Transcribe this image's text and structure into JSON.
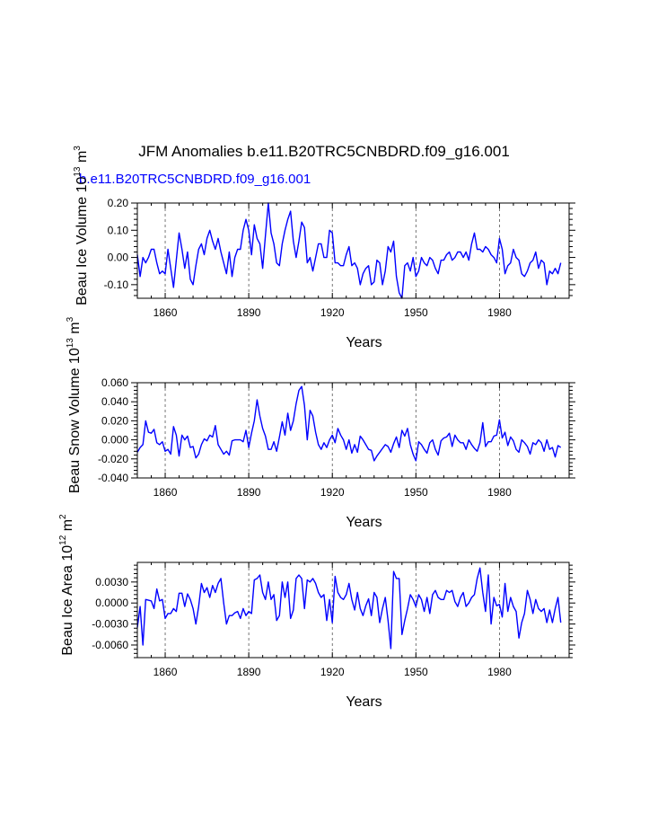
{
  "title": "JFM Anomalies b.e11.B20TRC5CNBDRD.f09_g16.001",
  "subtitle": "b.e11.B20TRC5CNBDRD.f09_g16.001",
  "colors": {
    "series": "#0000ff",
    "axis": "#000000",
    "grid": "#555555",
    "subtitle": "#0000ff"
  },
  "chart_data": [
    {
      "type": "line",
      "ylabel_main": "Beau Ice Volume 10",
      "ylabel_exp": "13",
      "ylabel_unit": "m",
      "ylabel_unit_exp": "3",
      "xlabel": "Years",
      "xlim": [
        1850,
        2005
      ],
      "ylim": [
        -0.15,
        0.2
      ],
      "xticks": [
        1860,
        1890,
        1920,
        1950,
        1980
      ],
      "xtick_labels": [
        "1860",
        "1890",
        "1920",
        "1950",
        "1980"
      ],
      "yticks": [
        -0.1,
        0.0,
        0.1,
        0.2
      ],
      "ytick_labels": [
        "-0.10",
        "0.00",
        "0.10",
        "0.20"
      ],
      "x_start": 1850,
      "values": [
        0.01,
        -0.07,
        0.0,
        -0.02,
        0.0,
        0.03,
        0.03,
        -0.02,
        -0.06,
        -0.05,
        -0.06,
        0.03,
        -0.04,
        -0.11,
        -0.01,
        0.09,
        0.03,
        -0.04,
        0.02,
        -0.08,
        -0.1,
        -0.03,
        0.03,
        0.05,
        0.01,
        0.07,
        0.1,
        0.06,
        0.03,
        0.07,
        0.02,
        -0.02,
        -0.06,
        0.02,
        -0.07,
        0.0,
        0.03,
        0.03,
        0.1,
        0.14,
        0.1,
        0.01,
        0.12,
        0.07,
        0.05,
        -0.04,
        0.08,
        0.2,
        0.09,
        0.05,
        -0.02,
        -0.03,
        0.05,
        0.1,
        0.14,
        0.17,
        0.06,
        0.0,
        0.06,
        0.13,
        0.11,
        -0.02,
        0.0,
        -0.05,
        0.0,
        0.05,
        0.05,
        0.0,
        0.0,
        0.1,
        0.09,
        -0.02,
        -0.02,
        -0.03,
        -0.03,
        0.01,
        0.04,
        -0.03,
        -0.02,
        -0.04,
        -0.1,
        -0.06,
        -0.04,
        -0.03,
        -0.1,
        -0.09,
        -0.01,
        -0.02,
        -0.1,
        -0.05,
        0.04,
        0.02,
        0.06,
        -0.07,
        -0.13,
        -0.15,
        -0.03,
        -0.02,
        -0.05,
        0.0,
        -0.07,
        -0.05,
        0.0,
        -0.02,
        -0.03,
        0.0,
        -0.01,
        -0.04,
        -0.06,
        -0.01,
        -0.01,
        0.01,
        0.02,
        -0.01,
        0.0,
        0.02,
        0.02,
        0.0,
        0.02,
        -0.01,
        0.05,
        0.09,
        0.03,
        0.03,
        0.02,
        0.04,
        0.03,
        0.01,
        0.0,
        -0.02,
        0.07,
        0.03,
        -0.06,
        -0.03,
        -0.02,
        0.03,
        0.0,
        -0.01,
        -0.06,
        -0.07,
        -0.05,
        -0.02,
        -0.01,
        0.02,
        -0.04,
        -0.01,
        -0.02,
        -0.1,
        -0.05,
        -0.06,
        -0.04,
        -0.06,
        -0.02
      ]
    },
    {
      "type": "line",
      "ylabel_main": "Beau Snow Volume 10",
      "ylabel_exp": "13",
      "ylabel_unit": "m",
      "ylabel_unit_exp": "3",
      "xlabel": "Years",
      "xlim": [
        1850,
        2005
      ],
      "ylim": [
        -0.04,
        0.06
      ],
      "xticks": [
        1860,
        1890,
        1920,
        1950,
        1980
      ],
      "xtick_labels": [
        "1860",
        "1890",
        "1920",
        "1950",
        "1980"
      ],
      "yticks": [
        -0.04,
        -0.02,
        0.0,
        0.02,
        0.04,
        0.06
      ],
      "ytick_labels": [
        "-0.040",
        "-0.020",
        "0.000",
        "0.020",
        "0.040",
        "0.060"
      ],
      "x_start": 1850,
      "values": [
        -0.013,
        -0.008,
        -0.005,
        0.02,
        0.008,
        0.007,
        0.011,
        -0.003,
        -0.005,
        -0.002,
        -0.012,
        -0.01,
        -0.015,
        0.014,
        0.005,
        -0.017,
        0.005,
        0.0,
        0.004,
        -0.008,
        -0.007,
        -0.019,
        -0.015,
        -0.005,
        0.001,
        -0.001,
        0.005,
        0.003,
        0.015,
        -0.005,
        -0.01,
        -0.015,
        -0.012,
        -0.016,
        -0.001,
        0.0,
        0.0,
        0.0,
        -0.002,
        0.01,
        -0.008,
        0.007,
        0.02,
        0.042,
        0.025,
        0.012,
        0.004,
        -0.01,
        -0.01,
        -0.002,
        -0.012,
        0.003,
        0.019,
        0.005,
        0.028,
        0.01,
        0.02,
        0.038,
        0.052,
        0.056,
        0.036,
        0.0,
        0.031,
        0.025,
        0.008,
        -0.005,
        -0.01,
        -0.003,
        -0.008,
        0.0,
        0.005,
        -0.003,
        0.012,
        0.005,
        0.0,
        -0.01,
        0.0,
        -0.014,
        -0.005,
        -0.013,
        0.004,
        0.0,
        -0.005,
        -0.01,
        -0.011,
        -0.022,
        -0.017,
        -0.013,
        -0.009,
        -0.005,
        -0.007,
        -0.013,
        -0.004,
        0.003,
        -0.008,
        0.01,
        0.004,
        0.012,
        -0.005,
        -0.015,
        -0.022,
        -0.002,
        -0.005,
        -0.01,
        -0.014,
        -0.003,
        0.0,
        -0.01,
        -0.016,
        -0.001,
        0.002,
        0.003,
        0.007,
        -0.007,
        0.005,
        0.0,
        -0.003,
        -0.003,
        -0.01,
        0.0,
        -0.005,
        -0.009,
        -0.012,
        -0.003,
        0.018,
        -0.007,
        -0.002,
        -0.002,
        0.004,
        0.005,
        0.021,
        0.002,
        0.008,
        -0.006,
        0.003,
        -0.001,
        -0.01,
        -0.013,
        0.0,
        -0.003,
        -0.007,
        -0.015,
        -0.003,
        -0.005,
        0.0,
        -0.003,
        -0.012,
        0.0,
        -0.01,
        -0.008,
        -0.018,
        -0.006,
        -0.008
      ]
    },
    {
      "type": "line",
      "ylabel_main": "Beau Ice Area 10",
      "ylabel_exp": "12",
      "ylabel_unit": "m",
      "ylabel_unit_exp": "2",
      "xlabel": "Years",
      "xlim": [
        1850,
        2005
      ],
      "ylim": [
        -0.0078,
        0.0058
      ],
      "xticks": [
        1860,
        1890,
        1920,
        1950,
        1980
      ],
      "xtick_labels": [
        "1860",
        "1890",
        "1920",
        "1950",
        "1980"
      ],
      "yticks": [
        -0.006,
        -0.003,
        0.0,
        0.003
      ],
      "ytick_labels": [
        "-0.0060",
        "-0.0030",
        "0.0000",
        "0.0030"
      ],
      "x_start": 1850,
      "values": [
        -0.0035,
        -0.0005,
        -0.006,
        0.0005,
        0.0004,
        0.0003,
        -0.0008,
        0.002,
        0.0003,
        0.0005,
        -0.0022,
        -0.0015,
        -0.0015,
        -0.0008,
        -0.0012,
        0.0014,
        0.0014,
        -0.0005,
        0.0013,
        0.0005,
        -0.0008,
        -0.003,
        -0.0005,
        0.0028,
        0.0015,
        0.0022,
        0.0008,
        0.0025,
        0.0015,
        0.0028,
        0.0035,
        0.0,
        -0.003,
        -0.0018,
        -0.0018,
        -0.0014,
        -0.0012,
        -0.0022,
        -0.0008,
        -0.0018,
        -0.0012,
        -0.0015,
        0.0033,
        0.0035,
        0.004,
        0.0015,
        0.0005,
        0.003,
        0.0005,
        0.0012,
        -0.0025,
        -0.0018,
        0.003,
        0.0008,
        0.003,
        -0.0022,
        -0.001,
        0.0035,
        0.004,
        0.0035,
        -0.0008,
        0.0033,
        0.003,
        0.0035,
        0.0028,
        0.0015,
        0.0008,
        0.0012,
        -0.0025,
        0.0005,
        -0.0028,
        0.0038,
        0.0015,
        0.0008,
        0.0005,
        0.0012,
        0.0028,
        0.0005,
        -0.001,
        0.0015,
        -0.0008,
        -0.0018,
        -0.0004,
        0.0006,
        -0.0018,
        0.0015,
        0.0008,
        -0.0028,
        -0.0008,
        0.0008,
        -0.0025,
        -0.0065,
        0.0045,
        0.0035,
        0.0035,
        -0.0045,
        -0.0025,
        -0.0008,
        0.0012,
        0.0005,
        -0.0005,
        0.0012,
        0.0005,
        -0.0012,
        0.0008,
        -0.0015,
        0.0012,
        0.0018,
        0.0008,
        0.0005,
        0.0005,
        0.0018,
        0.0015,
        0.0018,
        0.0002,
        -0.0005,
        0.0008,
        0.0015,
        -0.0005,
        0.0,
        0.0008,
        0.0012,
        0.0035,
        0.005,
        0.0015,
        -0.0012,
        0.004,
        -0.003,
        0.0008,
        -0.0004,
        -0.0002,
        -0.002,
        0.0028,
        -0.0012,
        0.0008,
        -0.0005,
        -0.0012,
        -0.005,
        -0.0028,
        -0.0015,
        0.0018,
        0.0005,
        -0.0015,
        0.0005,
        -0.0008,
        -0.0012,
        -0.0008,
        -0.0028,
        -0.001,
        -0.0028,
        -0.0008,
        0.0008,
        -0.0028
      ]
    }
  ]
}
